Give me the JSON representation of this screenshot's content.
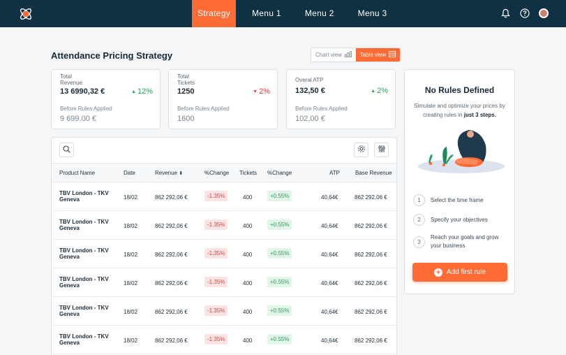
{
  "nav": {
    "items": [
      "Strategy",
      "Menu 1",
      "Menu 2",
      "Menu 3"
    ],
    "active": "Strategy"
  },
  "page": {
    "title": "Attendance Pricing Strategy"
  },
  "view_toggle": {
    "chart": "Chart view",
    "table": "Table view",
    "active": "table"
  },
  "stats": [
    {
      "label_line1": "Total",
      "label_line2": "Revenue",
      "value": "13 6990,32 €",
      "delta": "12%",
      "direction": "up",
      "before_label": "Before Rules Applied",
      "before_value": "9 699.00 €"
    },
    {
      "label_line1": "Total",
      "label_line2": "Tickets",
      "value": "1250",
      "delta": "2%",
      "direction": "down",
      "before_label": "Before Rules Applied",
      "before_value": "1600"
    },
    {
      "label_line1": "Overal ATP",
      "label_line2": "",
      "value": "132,50 €",
      "delta": "2%",
      "direction": "up",
      "before_label": "Before Rules Applied",
      "before_value": "102,00 €"
    }
  ],
  "table": {
    "headers": [
      "Product Name",
      "Date",
      "Revenue",
      "%Change",
      "Tickets",
      "%Change",
      "ATP",
      "Base Revenue"
    ],
    "rows": [
      {
        "name": "TBV London - TKV Geneva",
        "date": "18/02",
        "revenue": "862 292,06 €",
        "rev_change": "-1.35%",
        "tickets": "400",
        "tick_change": "+0.55%",
        "atp": "40,64€",
        "base": "862 292,06 €"
      },
      {
        "name": "TBV London - TKV Geneva",
        "date": "18/02",
        "revenue": "862 292,06 €",
        "rev_change": "-1.35%",
        "tickets": "400",
        "tick_change": "+0.55%",
        "atp": "40,64€",
        "base": "862 292,06 €"
      },
      {
        "name": "TBV London - TKV Geneva",
        "date": "18/02",
        "revenue": "862 292,06 €",
        "rev_change": "-1.35%",
        "tickets": "400",
        "tick_change": "+0.55%",
        "atp": "40,64€",
        "base": "862 292,06 €"
      },
      {
        "name": "TBV London - TKV Geneva",
        "date": "18/02",
        "revenue": "862 292,06 €",
        "rev_change": "-1.35%",
        "tickets": "400",
        "tick_change": "+0.55%",
        "atp": "40,64€",
        "base": "862 292,06 €"
      },
      {
        "name": "TBV London - TKV Geneva",
        "date": "18/02",
        "revenue": "862 292,06 €",
        "rev_change": "-1.35%",
        "tickets": "400",
        "tick_change": "+0.55%",
        "atp": "40,64€",
        "base": "862 292,06 €"
      },
      {
        "name": "TBV London - TKV Geneva",
        "date": "18/02",
        "revenue": "862 292,06 €",
        "rev_change": "-1.35%",
        "tickets": "400",
        "tick_change": "+0.55%",
        "atp": "40,64€",
        "base": "862 292,06 €"
      }
    ]
  },
  "panel": {
    "title": "No Rules Defined",
    "desc_part1": "Simulate and optimize your prices by creating rules in",
    "desc_bold": "just 3 steps.",
    "steps": [
      {
        "num": "1",
        "text": "Select the time frame"
      },
      {
        "num": "2",
        "text": "Specify your objectives"
      },
      {
        "num": "3",
        "text": "Reach your goals and grow your business"
      }
    ],
    "button": "Add first rule"
  },
  "colors": {
    "brand": "#ff6b35",
    "topbar": "#0f3142",
    "positive": "#25a55a",
    "negative": "#e23d3d"
  }
}
